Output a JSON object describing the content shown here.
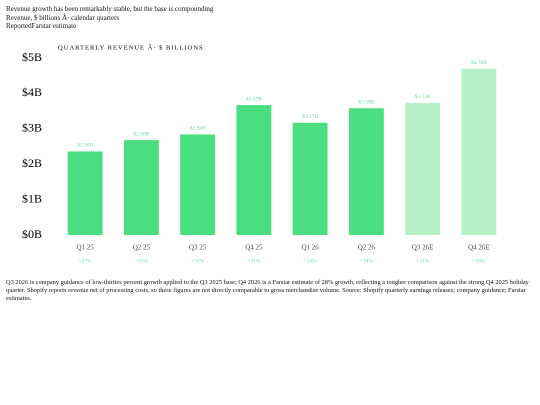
{
  "chart_data": {
    "type": "bar",
    "headline": "Revenue growth has been remarkably stable, but the base is compounding",
    "subtitle": "Revenue, $ billions Â· calendar quarters",
    "legend": [
      "Reported",
      "Farstar estimate"
    ],
    "title": "QUARTERLY REVENUE Â· $ BILLIONS",
    "categories": [
      "Q1 25",
      "Q2 25",
      "Q3 25",
      "Q4 25",
      "Q1 26",
      "Q2 26",
      "Q3 26E",
      "Q4 26E"
    ],
    "values": [
      2.36,
      2.68,
      2.84,
      3.67,
      3.17,
      3.58,
      3.73,
      4.7
    ],
    "value_labels": [
      "$2.36B",
      "$2.68B",
      "$2.84B",
      "$3.67B",
      "$3.17B",
      "$3.58B",
      "$3.73B",
      "$4.70B"
    ],
    "growth_labels": [
      "+27%",
      "+31%",
      "+32%",
      "+31%",
      "+34%",
      "+34%",
      "+31%",
      "+28%"
    ],
    "colors": [
      "#4ade80",
      "#4ade80",
      "#4ade80",
      "#4ade80",
      "#4ade80",
      "#4ade80",
      "#b6f0c9",
      "#b6f0c9"
    ],
    "ylim": [
      0,
      5
    ],
    "yticks": [
      {
        "value": 0,
        "label": "$0B"
      },
      {
        "value": 1,
        "label": "$1B"
      },
      {
        "value": 2,
        "label": "$2B"
      },
      {
        "value": 3,
        "label": "$3B"
      },
      {
        "value": 4,
        "label": "$4B"
      },
      {
        "value": 5,
        "label": "$5B"
      }
    ],
    "note": "Q3 2026 is company guidance of low-thirties percent growth applied to the Q3 2025 base; Q4 2026 is a Farstar estimate of 28% growth, reflecting a tougher comparison against the strong Q4 2025 holiday quarter. Shopify reports revenue net of processing costs, so these figures are not directly comparable to gross merchandise volume. Source: Shopify quarterly earnings releases; company guidance; Farstar estimates."
  }
}
